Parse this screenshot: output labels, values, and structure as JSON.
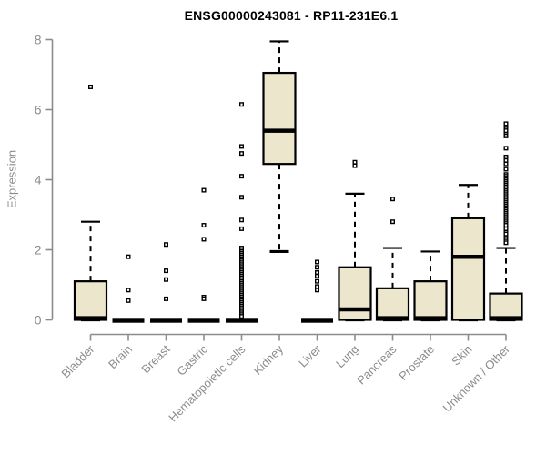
{
  "chart_data": {
    "type": "boxplot",
    "title": "ENSG00000243081 - RP11-231E6.1",
    "ylabel": "Expression",
    "xlabel": "",
    "ylim": [
      0,
      8
    ],
    "yticks": [
      0,
      2,
      4,
      6,
      8
    ],
    "grid": false,
    "legend": "none",
    "categories": [
      "Bladder",
      "Brain",
      "Breast",
      "Gastric",
      "Hematopoietic cells",
      "Kidney",
      "Liver",
      "Lung",
      "Pancreas",
      "Prostate",
      "Skin",
      "Unknown / Other"
    ],
    "boxes": [
      {
        "name": "Bladder",
        "flat": false,
        "lo": 0,
        "q1": 0,
        "median": 0.05,
        "q3": 1.1,
        "hi": 2.8,
        "outliers": [
          6.65
        ]
      },
      {
        "name": "Brain",
        "flat": true,
        "lo": 0,
        "q1": 0,
        "median": 0,
        "q3": 0,
        "hi": 0,
        "outliers": [
          1.8,
          0.85,
          0.55
        ]
      },
      {
        "name": "Breast",
        "flat": true,
        "lo": 0,
        "q1": 0,
        "median": 0,
        "q3": 0,
        "hi": 0,
        "outliers": [
          2.15,
          1.4,
          1.15,
          0.6
        ]
      },
      {
        "name": "Gastric",
        "flat": true,
        "lo": 0,
        "q1": 0,
        "median": 0,
        "q3": 0,
        "hi": 0,
        "outliers": [
          3.7,
          2.7,
          2.3,
          0.65,
          0.6
        ]
      },
      {
        "name": "Hematopoietic cells",
        "flat": true,
        "lo": 0,
        "q1": 0,
        "median": 0,
        "q3": 0,
        "hi": 0,
        "outliers": [
          6.15,
          4.95,
          4.75,
          4.1,
          3.5,
          2.85,
          2.6,
          2.05,
          2.0,
          1.95,
          1.9,
          1.85,
          1.8,
          1.75,
          1.7,
          1.65,
          1.6,
          1.55,
          1.5,
          1.45,
          1.4,
          1.35,
          1.3,
          1.25,
          1.2,
          1.15,
          1.1,
          1.05,
          1.0,
          0.95,
          0.9,
          0.85,
          0.8,
          0.75,
          0.7,
          0.65,
          0.6,
          0.55,
          0.5,
          0.45,
          0.4,
          0.35,
          0.3,
          0.25,
          0.2,
          0.15,
          0.1
        ]
      },
      {
        "name": "Kidney",
        "flat": false,
        "lo": 1.95,
        "q1": 4.45,
        "median": 5.4,
        "q3": 7.05,
        "hi": 7.95,
        "outliers": []
      },
      {
        "name": "Liver",
        "flat": true,
        "lo": 0,
        "q1": 0,
        "median": 0,
        "q3": 0,
        "hi": 0,
        "outliers": [
          1.65,
          1.5,
          1.35,
          1.25,
          1.1,
          0.95,
          0.85
        ]
      },
      {
        "name": "Lung",
        "flat": false,
        "lo": 0,
        "q1": 0,
        "median": 0.3,
        "q3": 1.5,
        "hi": 3.6,
        "outliers": [
          4.5,
          4.4
        ]
      },
      {
        "name": "Pancreas",
        "flat": false,
        "lo": 0,
        "q1": 0,
        "median": 0.05,
        "q3": 0.9,
        "hi": 2.05,
        "outliers": [
          3.45,
          2.8
        ]
      },
      {
        "name": "Prostate",
        "flat": false,
        "lo": 0,
        "q1": 0,
        "median": 0.05,
        "q3": 1.1,
        "hi": 1.95,
        "outliers": []
      },
      {
        "name": "Skin",
        "flat": false,
        "lo": 0,
        "q1": 0,
        "median": 1.8,
        "q3": 2.9,
        "hi": 3.85,
        "outliers": []
      },
      {
        "name": "Unknown / Other",
        "flat": false,
        "lo": 0,
        "q1": 0,
        "median": 0.05,
        "q3": 0.75,
        "hi": 2.05,
        "outliers": [
          5.6,
          5.5,
          5.45,
          5.4,
          5.3,
          5.25,
          4.9,
          4.65,
          4.55,
          4.45,
          4.3,
          4.15,
          4.1,
          4.05,
          4.0,
          3.95,
          3.9,
          3.85,
          3.8,
          3.75,
          3.7,
          3.65,
          3.6,
          3.55,
          3.5,
          3.45,
          3.4,
          3.35,
          3.3,
          3.25,
          3.2,
          3.15,
          3.1,
          3.05,
          3.0,
          2.95,
          2.9,
          2.85,
          2.8,
          2.75,
          2.7,
          2.6,
          2.5,
          2.45,
          2.35,
          2.3,
          2.25,
          2.2
        ]
      }
    ],
    "colors": {
      "box_fill": "#ece6cc",
      "box_stroke": "#000000",
      "median": "#000000",
      "whisker": "#000000",
      "outlier_stroke": "#000000",
      "axis": "#8c8c8c",
      "tick_label": "#8c8c8c",
      "title": "#000000",
      "background": "#ffffff"
    }
  }
}
